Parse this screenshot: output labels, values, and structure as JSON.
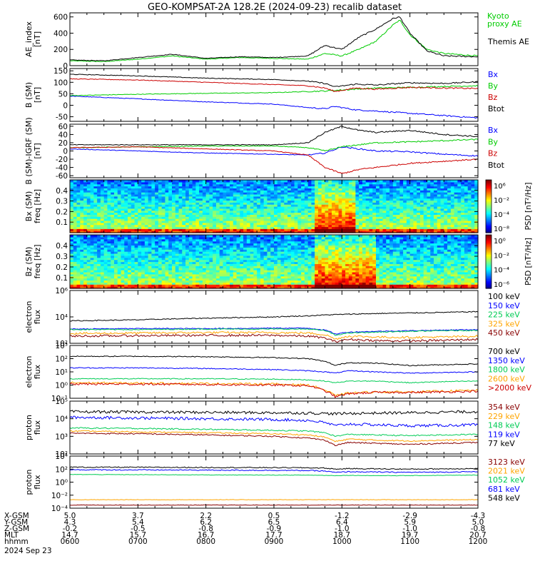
{
  "title": "GEO-KOMPSAT-2A 128.2E (2024-09-23) recalib dataset",
  "colors": {
    "black": "#000000",
    "blue": "#0000ff",
    "green": "#00cc00",
    "red": "#cc0000",
    "orange": "#ffa500",
    "cyan": "#0077aa",
    "darkred": "#880000",
    "emerald": "#00cc55"
  },
  "x_axis": {
    "start": "06:00",
    "end": "12:00",
    "tick_positions_hours": [
      6,
      7,
      8,
      9,
      10,
      11,
      12
    ],
    "row_labels": [
      "X-GSM",
      "Y-GSM",
      "Z-GSM",
      "MLT",
      "hhmm"
    ],
    "rows": [
      [
        "5.0",
        "3.7",
        "2.2",
        "0.5",
        "-1.2",
        "-2.9",
        "-4.3"
      ],
      [
        "4.3",
        "5.4",
        "6.2",
        "6.5",
        "6.4",
        "5.9",
        "5.0"
      ],
      [
        "-0.2",
        "-0.5",
        "-0.8",
        "-0.9",
        "-1.0",
        "-1.0",
        "-0.8"
      ],
      [
        "14.7",
        "15.7",
        "16.7",
        "17.7",
        "18.7",
        "19.7",
        "20.7"
      ],
      [
        "0600",
        "0700",
        "0800",
        "0900",
        "1000",
        "1100",
        "1200"
      ]
    ],
    "date": "2024 Sep 23"
  },
  "chart_data": [
    {
      "type": "line",
      "id": "ae",
      "ylabel": "AE_index\n[nT]",
      "ylim": [
        0,
        650
      ],
      "yticks": [
        "0",
        "200",
        "400",
        "600"
      ],
      "legend_placement": "right",
      "x": [
        6.0,
        6.5,
        7.0,
        7.5,
        8.0,
        8.5,
        9.0,
        9.5,
        9.75,
        10.0,
        10.25,
        10.5,
        10.75,
        10.85,
        11.0,
        11.25,
        11.5,
        12.0
      ],
      "series": [
        {
          "name": "Kyoto\nproxy AE",
          "color": "#00cc00",
          "values": [
            60,
            50,
            80,
            120,
            80,
            100,
            90,
            80,
            150,
            120,
            200,
            300,
            500,
            560,
            380,
            200,
            150,
            120
          ]
        },
        {
          "name": "Themis AE",
          "color": "#000000",
          "values": [
            70,
            60,
            100,
            140,
            90,
            110,
            100,
            120,
            250,
            200,
            350,
            450,
            580,
            600,
            400,
            180,
            120,
            110
          ]
        }
      ]
    },
    {
      "type": "line",
      "id": "bsm",
      "ylabel": "B (SM)\n[nT]",
      "ylim": [
        -70,
        160
      ],
      "yticks": [
        "-50",
        "0",
        "50",
        "100",
        "150"
      ],
      "legend_placement": "right",
      "x": [
        6.0,
        7.0,
        8.0,
        9.0,
        9.5,
        9.75,
        9.9,
        10.2,
        10.5,
        11.0,
        11.5,
        12.0
      ],
      "series": [
        {
          "name": "Bx",
          "color": "#0000ff",
          "values": [
            40,
            28,
            15,
            5,
            -10,
            -15,
            -5,
            -20,
            -25,
            -35,
            -45,
            -55
          ]
        },
        {
          "name": "By",
          "color": "#00cc00",
          "values": [
            42,
            48,
            52,
            55,
            60,
            62,
            65,
            70,
            75,
            78,
            82,
            85
          ]
        },
        {
          "name": "Bz",
          "color": "#cc0000",
          "values": [
            115,
            110,
            100,
            90,
            85,
            75,
            60,
            75,
            70,
            78,
            75,
            73
          ]
        },
        {
          "name": "Btot",
          "color": "#000000",
          "values": [
            135,
            128,
            118,
            112,
            105,
            95,
            80,
            92,
            88,
            98,
            95,
            102
          ]
        }
      ]
    },
    {
      "type": "line",
      "id": "bigrf",
      "ylabel": "B (SM)-IGRF (SM)\n[nT]",
      "ylim": [
        -65,
        65
      ],
      "yticks": [
        "-60",
        "-40",
        "-20",
        "0",
        "20",
        "40",
        "60"
      ],
      "legend_placement": "right",
      "x": [
        6.0,
        7.0,
        8.0,
        9.0,
        9.5,
        9.75,
        10.0,
        10.25,
        10.5,
        11.0,
        11.5,
        12.0
      ],
      "series": [
        {
          "name": "Bx",
          "color": "#0000ff",
          "values": [
            5,
            0,
            -5,
            -8,
            -10,
            -5,
            10,
            5,
            0,
            -2,
            -8,
            -12
          ]
        },
        {
          "name": "By",
          "color": "#00cc00",
          "values": [
            8,
            10,
            12,
            12,
            8,
            0,
            10,
            15,
            20,
            22,
            25,
            28
          ]
        },
        {
          "name": "Bz",
          "color": "#cc0000",
          "values": [
            8,
            10,
            5,
            0,
            -10,
            -40,
            -55,
            -45,
            -40,
            -30,
            -25,
            -20
          ]
        },
        {
          "name": "Btot",
          "color": "#000000",
          "values": [
            15,
            15,
            15,
            15,
            20,
            45,
            60,
            50,
            45,
            50,
            40,
            35
          ]
        }
      ]
    },
    {
      "type": "heatmap",
      "id": "bx-spec",
      "ylabel": "Bx (SM)\nfreq [Hz]",
      "ylim": [
        0,
        0.5
      ],
      "yticks": [
        "0.1",
        "0.2",
        "0.3",
        "0.4"
      ],
      "colorbar_label": "PSD [nT²/Hz]",
      "colorbar_ticks": [
        "10⁶",
        "10⁻²",
        "10⁻⁴",
        "10⁻⁸"
      ],
      "active_interval_hours": [
        9.6,
        10.2
      ]
    },
    {
      "type": "heatmap",
      "id": "bz-spec",
      "ylabel": "Bz (SM)\nfreq [Hz]",
      "ylim": [
        0,
        0.5
      ],
      "yticks": [
        "0.1",
        "0.2",
        "0.3",
        "0.4"
      ],
      "colorbar_label": "PSD [nT²/Hz]",
      "colorbar_ticks": [
        "10⁰",
        "10⁻²",
        "10⁻⁴",
        "10⁻⁶"
      ],
      "active_interval_hours": [
        9.6,
        10.5
      ]
    },
    {
      "type": "line",
      "id": "eflux1",
      "ylabel": "electron\nflux",
      "log": true,
      "ylim": [
        100,
        1000000
      ],
      "yticks": [
        "10²",
        "10⁴",
        "10⁶"
      ],
      "legend_placement": "right",
      "x": [
        6.0,
        7.0,
        8.0,
        9.0,
        9.5,
        9.75,
        9.9,
        10.1,
        10.5,
        11.0,
        11.5,
        12.0
      ],
      "series": [
        {
          "name": "100 keV",
          "color": "#000000",
          "values": [
            5000,
            6000,
            8000,
            10000,
            12000,
            14000,
            15000,
            16000,
            18000,
            20000,
            22000,
            25000
          ]
        },
        {
          "name": "150 keV",
          "color": "#0000ff",
          "values": [
            1200,
            1300,
            1300,
            1400,
            1400,
            1000,
            500,
            700,
            800,
            900,
            1000,
            1100
          ]
        },
        {
          "name": "225 keV",
          "color": "#00cc55",
          "values": [
            1100,
            1100,
            1200,
            1200,
            1200,
            900,
            400,
            600,
            700,
            800,
            900,
            950
          ]
        },
        {
          "name": "325 keV",
          "color": "#ffa500",
          "values": [
            550,
            600,
            650,
            650,
            600,
            450,
            200,
            350,
            300,
            280,
            300,
            350
          ]
        },
        {
          "name": "450 keV",
          "color": "#880000",
          "values": [
            350,
            380,
            400,
            400,
            350,
            250,
            130,
            200,
            160,
            150,
            170,
            200
          ]
        }
      ]
    },
    {
      "type": "line",
      "id": "eflux2",
      "ylabel": "electron\nflux",
      "log": true,
      "ylim": [
        0.1,
        1000
      ],
      "yticks": [
        "10⁻¹",
        "10⁰",
        "10¹",
        "10²",
        "10³"
      ],
      "legend_placement": "right",
      "x": [
        6.0,
        7.0,
        8.0,
        9.0,
        9.5,
        9.75,
        9.9,
        10.1,
        10.5,
        11.0,
        11.5,
        12.0
      ],
      "series": [
        {
          "name": "700 keV",
          "color": "#000000",
          "values": [
            150,
            150,
            140,
            120,
            100,
            60,
            30,
            50,
            45,
            30,
            35,
            40
          ]
        },
        {
          "name": "1350 keV",
          "color": "#0000ff",
          "values": [
            20,
            20,
            18,
            15,
            12,
            10,
            8,
            12,
            10,
            8,
            9,
            10
          ]
        },
        {
          "name": "1800 keV",
          "color": "#00cc55",
          "values": [
            3,
            3,
            3,
            2.8,
            2.5,
            2,
            1.5,
            2,
            2,
            1.5,
            1.8,
            2
          ]
        },
        {
          "name": "2600 keV",
          "color": "#ffa500",
          "values": [
            1.5,
            1.4,
            1.3,
            1.2,
            1,
            0.4,
            0.15,
            0.25,
            0.3,
            0.3,
            0.35,
            0.4
          ]
        },
        {
          "name": ">2000 keV",
          "color": "#cc0000",
          "values": [
            1.2,
            1.2,
            1.1,
            1.0,
            0.9,
            0.35,
            0.13,
            0.22,
            0.28,
            0.28,
            0.3,
            0.35
          ]
        }
      ]
    },
    {
      "type": "line",
      "id": "pflux1",
      "ylabel": "proton\nflux",
      "log": true,
      "ylim": [
        100,
        100000
      ],
      "yticks": [
        "10²",
        "10³",
        "10⁴",
        "10⁵"
      ],
      "legend_placement": "right",
      "x": [
        6.0,
        7.0,
        8.0,
        9.0,
        9.5,
        9.75,
        9.9,
        10.1,
        10.5,
        11.0,
        11.5,
        12.0
      ],
      "series": [
        {
          "name": "354 keV",
          "color": "#880000",
          "values": [
            1500,
            1400,
            1200,
            1000,
            800,
            600,
            300,
            450,
            400,
            350,
            400,
            450
          ]
        },
        {
          "name": "229 keV",
          "color": "#ffa500",
          "values": [
            2000,
            1800,
            1600,
            1400,
            1200,
            900,
            500,
            700,
            600,
            550,
            600,
            650
          ]
        },
        {
          "name": "148 keV",
          "color": "#00cc55",
          "values": [
            3000,
            2800,
            2500,
            2200,
            2000,
            1600,
            1000,
            1300,
            1200,
            1100,
            1200,
            1300
          ]
        },
        {
          "name": "119 keV",
          "color": "#0000ff",
          "values": [
            12000,
            11000,
            10000,
            9000,
            8000,
            6000,
            4000,
            5000,
            4500,
            4000,
            4200,
            4500
          ]
        },
        {
          "name": "77 keV",
          "color": "#000000",
          "values": [
            25000,
            24000,
            23000,
            22000,
            21000,
            20000,
            19000,
            20000,
            21000,
            22000,
            24000,
            25000
          ]
        }
      ]
    },
    {
      "type": "line",
      "id": "pflux2",
      "ylabel": "proton\nflux",
      "log": true,
      "ylim": [
        0.0001,
        10000
      ],
      "yticks": [
        "10⁻⁴",
        "10⁻²",
        "10⁰",
        "10²",
        "10⁴"
      ],
      "legend_placement": "right",
      "x": [
        6.0,
        7.0,
        8.0,
        9.0,
        9.5,
        9.75,
        9.9,
        10.1,
        10.5,
        11.0,
        11.5,
        12.0
      ],
      "series": [
        {
          "name": "3123 keV",
          "color": "#880000",
          "values": [
            0.0003,
            0.0003,
            0.0003,
            0.0003,
            0.0003,
            0.0003,
            0.0003,
            0.0003,
            0.0003,
            0.0003,
            0.0003,
            0.0003
          ]
        },
        {
          "name": "2021 keV",
          "color": "#ffa500",
          "values": [
            0.002,
            0.002,
            0.002,
            0.002,
            0.002,
            0.002,
            0.002,
            0.002,
            0.002,
            0.002,
            0.002,
            0.002
          ]
        },
        {
          "name": "1052 keV",
          "color": "#00cc55",
          "values": [
            15,
            14,
            13,
            12,
            12,
            11,
            10,
            11,
            10,
            10,
            11,
            12
          ]
        },
        {
          "name": "681 keV",
          "color": "#0000ff",
          "values": [
            80,
            75,
            70,
            65,
            60,
            50,
            30,
            40,
            35,
            32,
            35,
            40
          ]
        },
        {
          "name": "548 keV",
          "color": "#000000",
          "values": [
            200,
            190,
            180,
            170,
            160,
            140,
            100,
            120,
            110,
            100,
            110,
            120
          ]
        }
      ]
    }
  ]
}
